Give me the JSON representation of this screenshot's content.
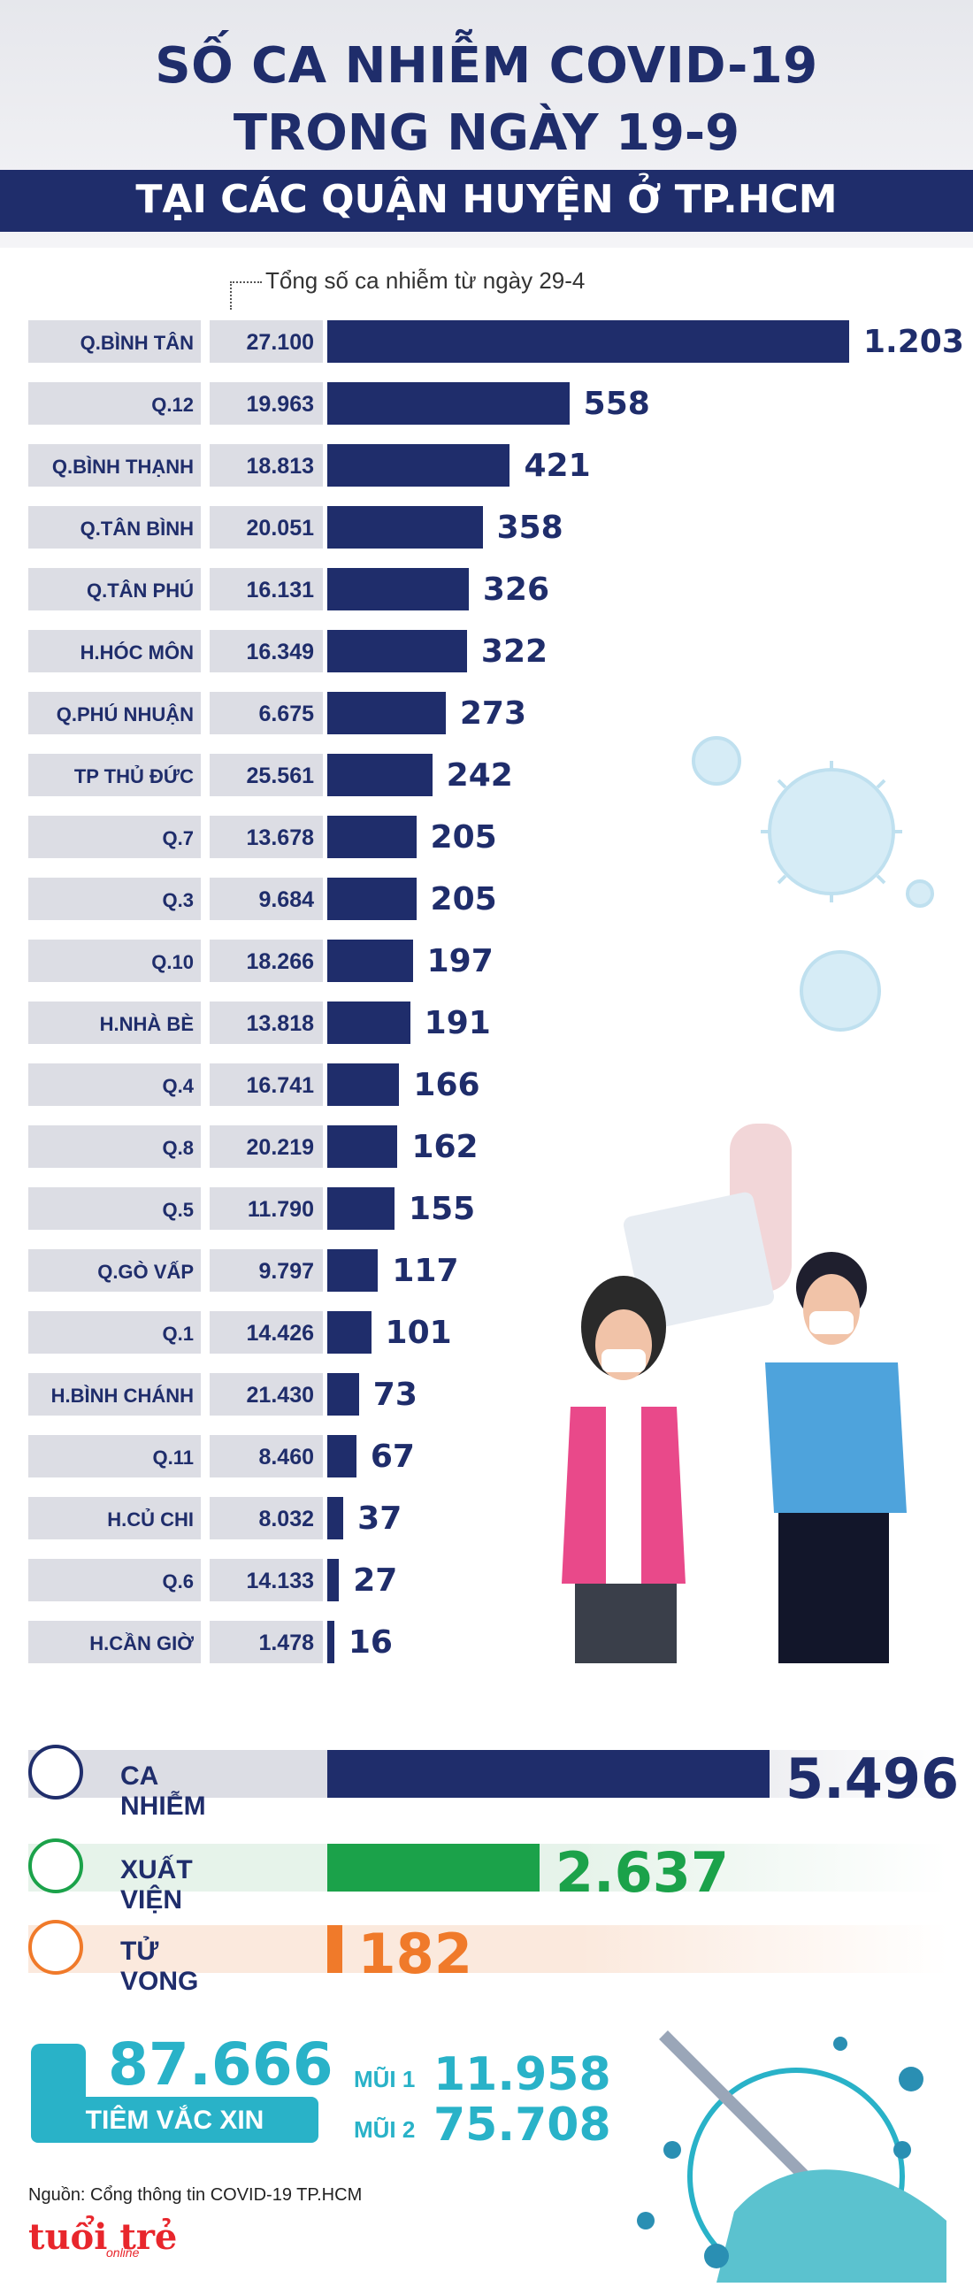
{
  "header": {
    "title_line1": "SỐ CA NHIỄM COVID-19",
    "title_line2": "TRONG NGÀY 19-9",
    "subtitle": "TẠI CÁC QUẬN HUYỆN Ở TP.HCM"
  },
  "note": "Tổng số ca nhiễm từ ngày 29-4",
  "chart_data": {
    "type": "bar",
    "categories": [
      "Q.BÌNH TÂN",
      "Q.12",
      "Q.BÌNH THẠNH",
      "Q.TÂN BÌNH",
      "Q.TÂN PHÚ",
      "H.HÓC MÔN",
      "Q.PHÚ NHUẬN",
      "TP THỦ ĐỨC",
      "Q.7",
      "Q.3",
      "Q.10",
      "H.NHÀ BÈ",
      "Q.4",
      "Q.8",
      "Q.5",
      "Q.GÒ VẤP",
      "Q.1",
      "H.BÌNH CHÁNH",
      "Q.11",
      "H.CỦ CHI",
      "Q.6",
      "H.CẦN GIỜ"
    ],
    "values": [
      1203,
      558,
      421,
      358,
      326,
      322,
      273,
      242,
      205,
      205,
      197,
      191,
      166,
      162,
      155,
      117,
      101,
      73,
      67,
      37,
      27,
      16
    ],
    "value_labels": [
      "1.203",
      "558",
      "421",
      "358",
      "326",
      "322",
      "273",
      "242",
      "205",
      "205",
      "197",
      "191",
      "166",
      "162",
      "155",
      "117",
      "101",
      "73",
      "67",
      "37",
      "27",
      "16"
    ],
    "totals": [
      "27.100",
      "19.963",
      "18.813",
      "20.051",
      "16.131",
      "16.349",
      "6.675",
      "25.561",
      "13.678",
      "9.684",
      "18.266",
      "13.818",
      "16.741",
      "20.219",
      "11.790",
      "9.797",
      "14.426",
      "21.430",
      "8.460",
      "8.032",
      "14.133",
      "1.478"
    ],
    "orientation": "horizontal",
    "bar_color": "#1f2d6b"
  },
  "summary": [
    {
      "label": "CA NHIỄM",
      "value": 5496,
      "value_text": "5.496",
      "color": "#1f2d6b",
      "bg": "#dcdde4",
      "icon": "head-icon"
    },
    {
      "label": "XUẤT VIỆN",
      "value": 2637,
      "value_text": "2.637",
      "color": "#1ba24a",
      "bg": "#e6f3ea",
      "icon": "heart-icon"
    },
    {
      "label": "TỬ VONG",
      "value": 182,
      "value_text": "182",
      "color": "#f07a2a",
      "bg": "#fbe9dd",
      "icon": "bed-icon"
    }
  ],
  "vaccine": {
    "total": "87.666",
    "label": "TIÊM VẮC XIN",
    "dose1_label": "MŨI 1",
    "dose1_value": "11.958",
    "dose2_label": "MŨI 2",
    "dose2_value": "75.708",
    "icon": "syringe-icon"
  },
  "footer": {
    "source": "Nguồn: Cổng thông tin COVID-19 TP.HCM",
    "logo": "tuổi trẻ",
    "logo_sub": "online"
  },
  "colors": {
    "navy": "#1f2d6b",
    "green": "#1ba24a",
    "orange": "#f07a2a",
    "teal": "#29b2c8"
  }
}
